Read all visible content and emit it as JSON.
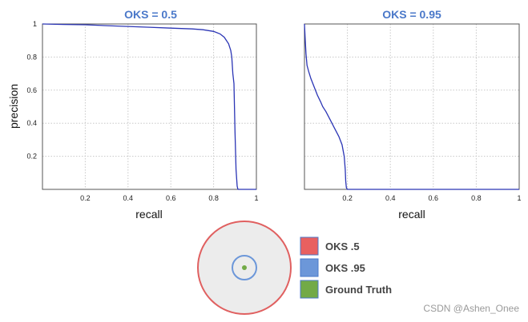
{
  "chart_data": [
    {
      "type": "line",
      "title": "OKS = 0.5",
      "xlabel": "recall",
      "ylabel": "precision",
      "xlim": [
        0,
        1
      ],
      "ylim": [
        0,
        1
      ],
      "xticks": [
        "0.2",
        "0.4",
        "0.6",
        "0.8",
        "1"
      ],
      "yticks": [
        "0.2",
        "0.4",
        "0.6",
        "0.8",
        "1"
      ],
      "grid": true,
      "color": "#2b35b5",
      "series": [
        {
          "name": "OKS = 0.5",
          "x": [
            0,
            0.1,
            0.2,
            0.3,
            0.4,
            0.5,
            0.6,
            0.7,
            0.75,
            0.8,
            0.83,
            0.85,
            0.87,
            0.88,
            0.885,
            0.89,
            0.895,
            0.9,
            0.905,
            0.91,
            0.913,
            0.915,
            0.93,
            0.95,
            0.97,
            1.0
          ],
          "y": [
            1.0,
            0.997,
            0.995,
            0.99,
            0.985,
            0.98,
            0.975,
            0.97,
            0.965,
            0.955,
            0.94,
            0.92,
            0.88,
            0.84,
            0.8,
            0.7,
            0.64,
            0.35,
            0.12,
            0.02,
            0.003,
            0,
            0,
            0,
            0,
            0
          ]
        }
      ]
    },
    {
      "type": "line",
      "title": "OKS = 0.95",
      "xlabel": "recall",
      "ylabel": "",
      "xlim": [
        0,
        1
      ],
      "ylim": [
        0,
        1
      ],
      "xticks": [
        "0.2",
        "0.4",
        "0.6",
        "0.8",
        "1"
      ],
      "yticks": [],
      "grid": true,
      "color": "#2b35b5",
      "series": [
        {
          "name": "OKS = 0.95",
          "x": [
            0,
            0.003,
            0.007,
            0.012,
            0.02,
            0.03,
            0.045,
            0.06,
            0.075,
            0.085,
            0.1,
            0.12,
            0.14,
            0.16,
            0.175,
            0.185,
            0.19,
            0.192,
            0.195,
            0.2,
            0.3,
            0.5,
            0.7,
            0.9,
            1.0
          ],
          "y": [
            1.0,
            0.92,
            0.82,
            0.75,
            0.71,
            0.67,
            0.62,
            0.57,
            0.53,
            0.5,
            0.47,
            0.42,
            0.37,
            0.32,
            0.27,
            0.2,
            0.12,
            0.05,
            0.01,
            0.0,
            0.0,
            0.0,
            0.0,
            0.0,
            0.0
          ]
        }
      ]
    }
  ],
  "legend": {
    "items": [
      {
        "label": "OKS .5",
        "color": "#e86060"
      },
      {
        "label": "OKS .95",
        "color": "#6c97d9"
      },
      {
        "label": "Ground Truth",
        "color": "#72aa47"
      }
    ]
  },
  "diagram_colors": {
    "outer_ring": "#e06060",
    "outer_fill": "#ececec",
    "inner_ring": "#6c97d9",
    "center_dot": "#72aa47"
  },
  "watermark": "CSDN @Ashen_Onee"
}
